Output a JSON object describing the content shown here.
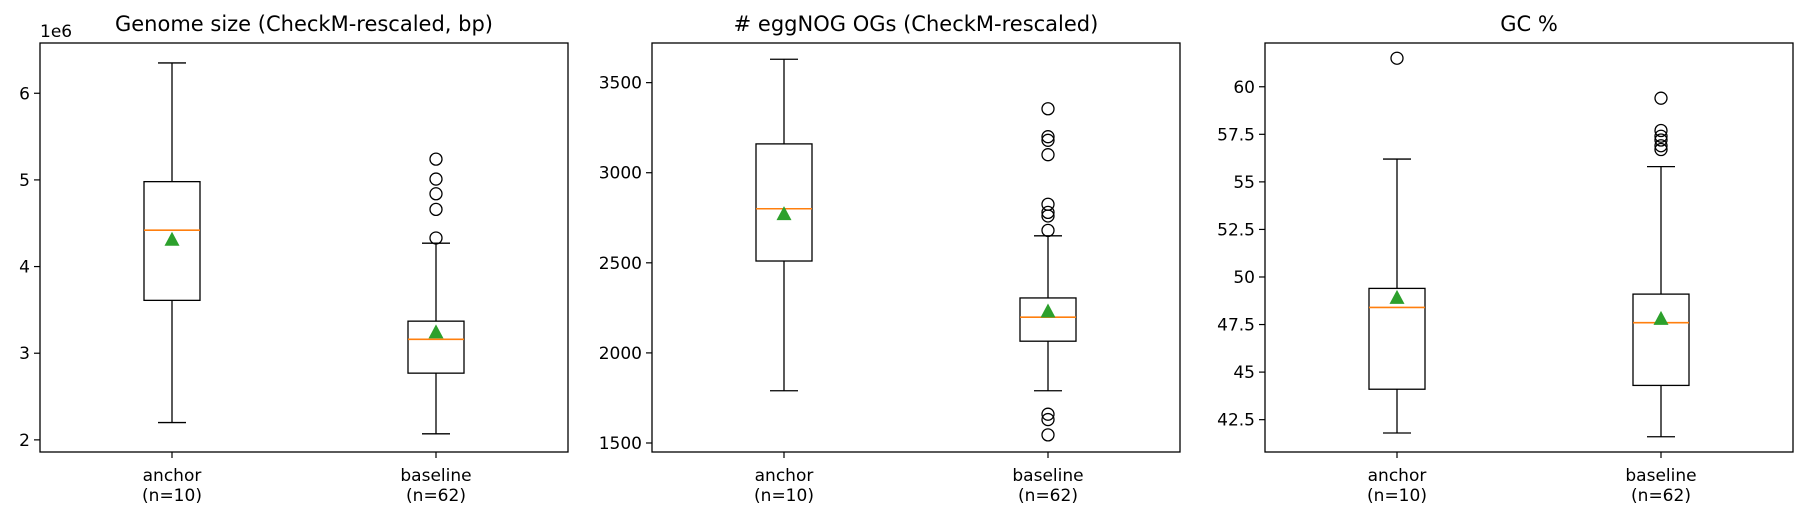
{
  "chart_data": [
    {
      "type": "box",
      "title": "Genome size (CheckM-rescaled, bp)",
      "offset_label": "1e6",
      "categories": [
        "anchor\n(n=10)",
        "baseline\n(n=62)"
      ],
      "yticks": [
        2,
        3,
        4,
        5,
        6
      ],
      "ylim": [
        1.86,
        6.58
      ],
      "series": [
        {
          "q1": 3.61,
          "median": 4.42,
          "q3": 4.98,
          "mean": 4.31,
          "whisker_low": 2.2,
          "whisker_high": 6.35,
          "outliers": []
        },
        {
          "q1": 2.77,
          "median": 3.16,
          "q3": 3.37,
          "mean": 3.24,
          "whisker_low": 2.07,
          "whisker_high": 4.27,
          "outliers": [
            4.33,
            4.66,
            4.84,
            5.01,
            5.24
          ]
        }
      ]
    },
    {
      "type": "box",
      "title": "# eggNOG OGs (CheckM-rescaled)",
      "categories": [
        "anchor\n(n=10)",
        "baseline\n(n=62)"
      ],
      "yticks": [
        1500,
        2000,
        2500,
        3000,
        3500
      ],
      "ylim": [
        1450,
        3720
      ],
      "series": [
        {
          "q1": 2510,
          "median": 2800,
          "q3": 3160,
          "mean": 2770,
          "whisker_low": 1790,
          "whisker_high": 3630,
          "outliers": []
        },
        {
          "q1": 2065,
          "median": 2198,
          "q3": 2305,
          "mean": 2230,
          "whisker_low": 1790,
          "whisker_high": 2650,
          "outliers": [
            1545,
            1630,
            1660,
            2680,
            2760,
            2780,
            2825,
            3100,
            3180,
            3200,
            3355
          ]
        }
      ]
    },
    {
      "type": "box",
      "title": "GC %",
      "categories": [
        "anchor\n(n=10)",
        "baseline\n(n=62)"
      ],
      "yticks": [
        42.5,
        45.0,
        47.5,
        50.0,
        52.5,
        55.0,
        57.5,
        60.0
      ],
      "ylim": [
        40.8,
        62.3
      ],
      "series": [
        {
          "q1": 44.1,
          "median": 48.4,
          "q3": 49.4,
          "mean": 48.9,
          "whisker_low": 41.8,
          "whisker_high": 56.2,
          "outliers": [
            61.5
          ]
        },
        {
          "q1": 44.3,
          "median": 47.6,
          "q3": 49.1,
          "mean": 47.8,
          "whisker_low": 41.6,
          "whisker_high": 55.8,
          "outliers": [
            56.7,
            56.9,
            57.2,
            57.4,
            57.7,
            59.4
          ]
        }
      ]
    }
  ],
  "colors": {
    "median": "#ff7f0e",
    "mean": "#2ca02c",
    "box": "#000000"
  }
}
